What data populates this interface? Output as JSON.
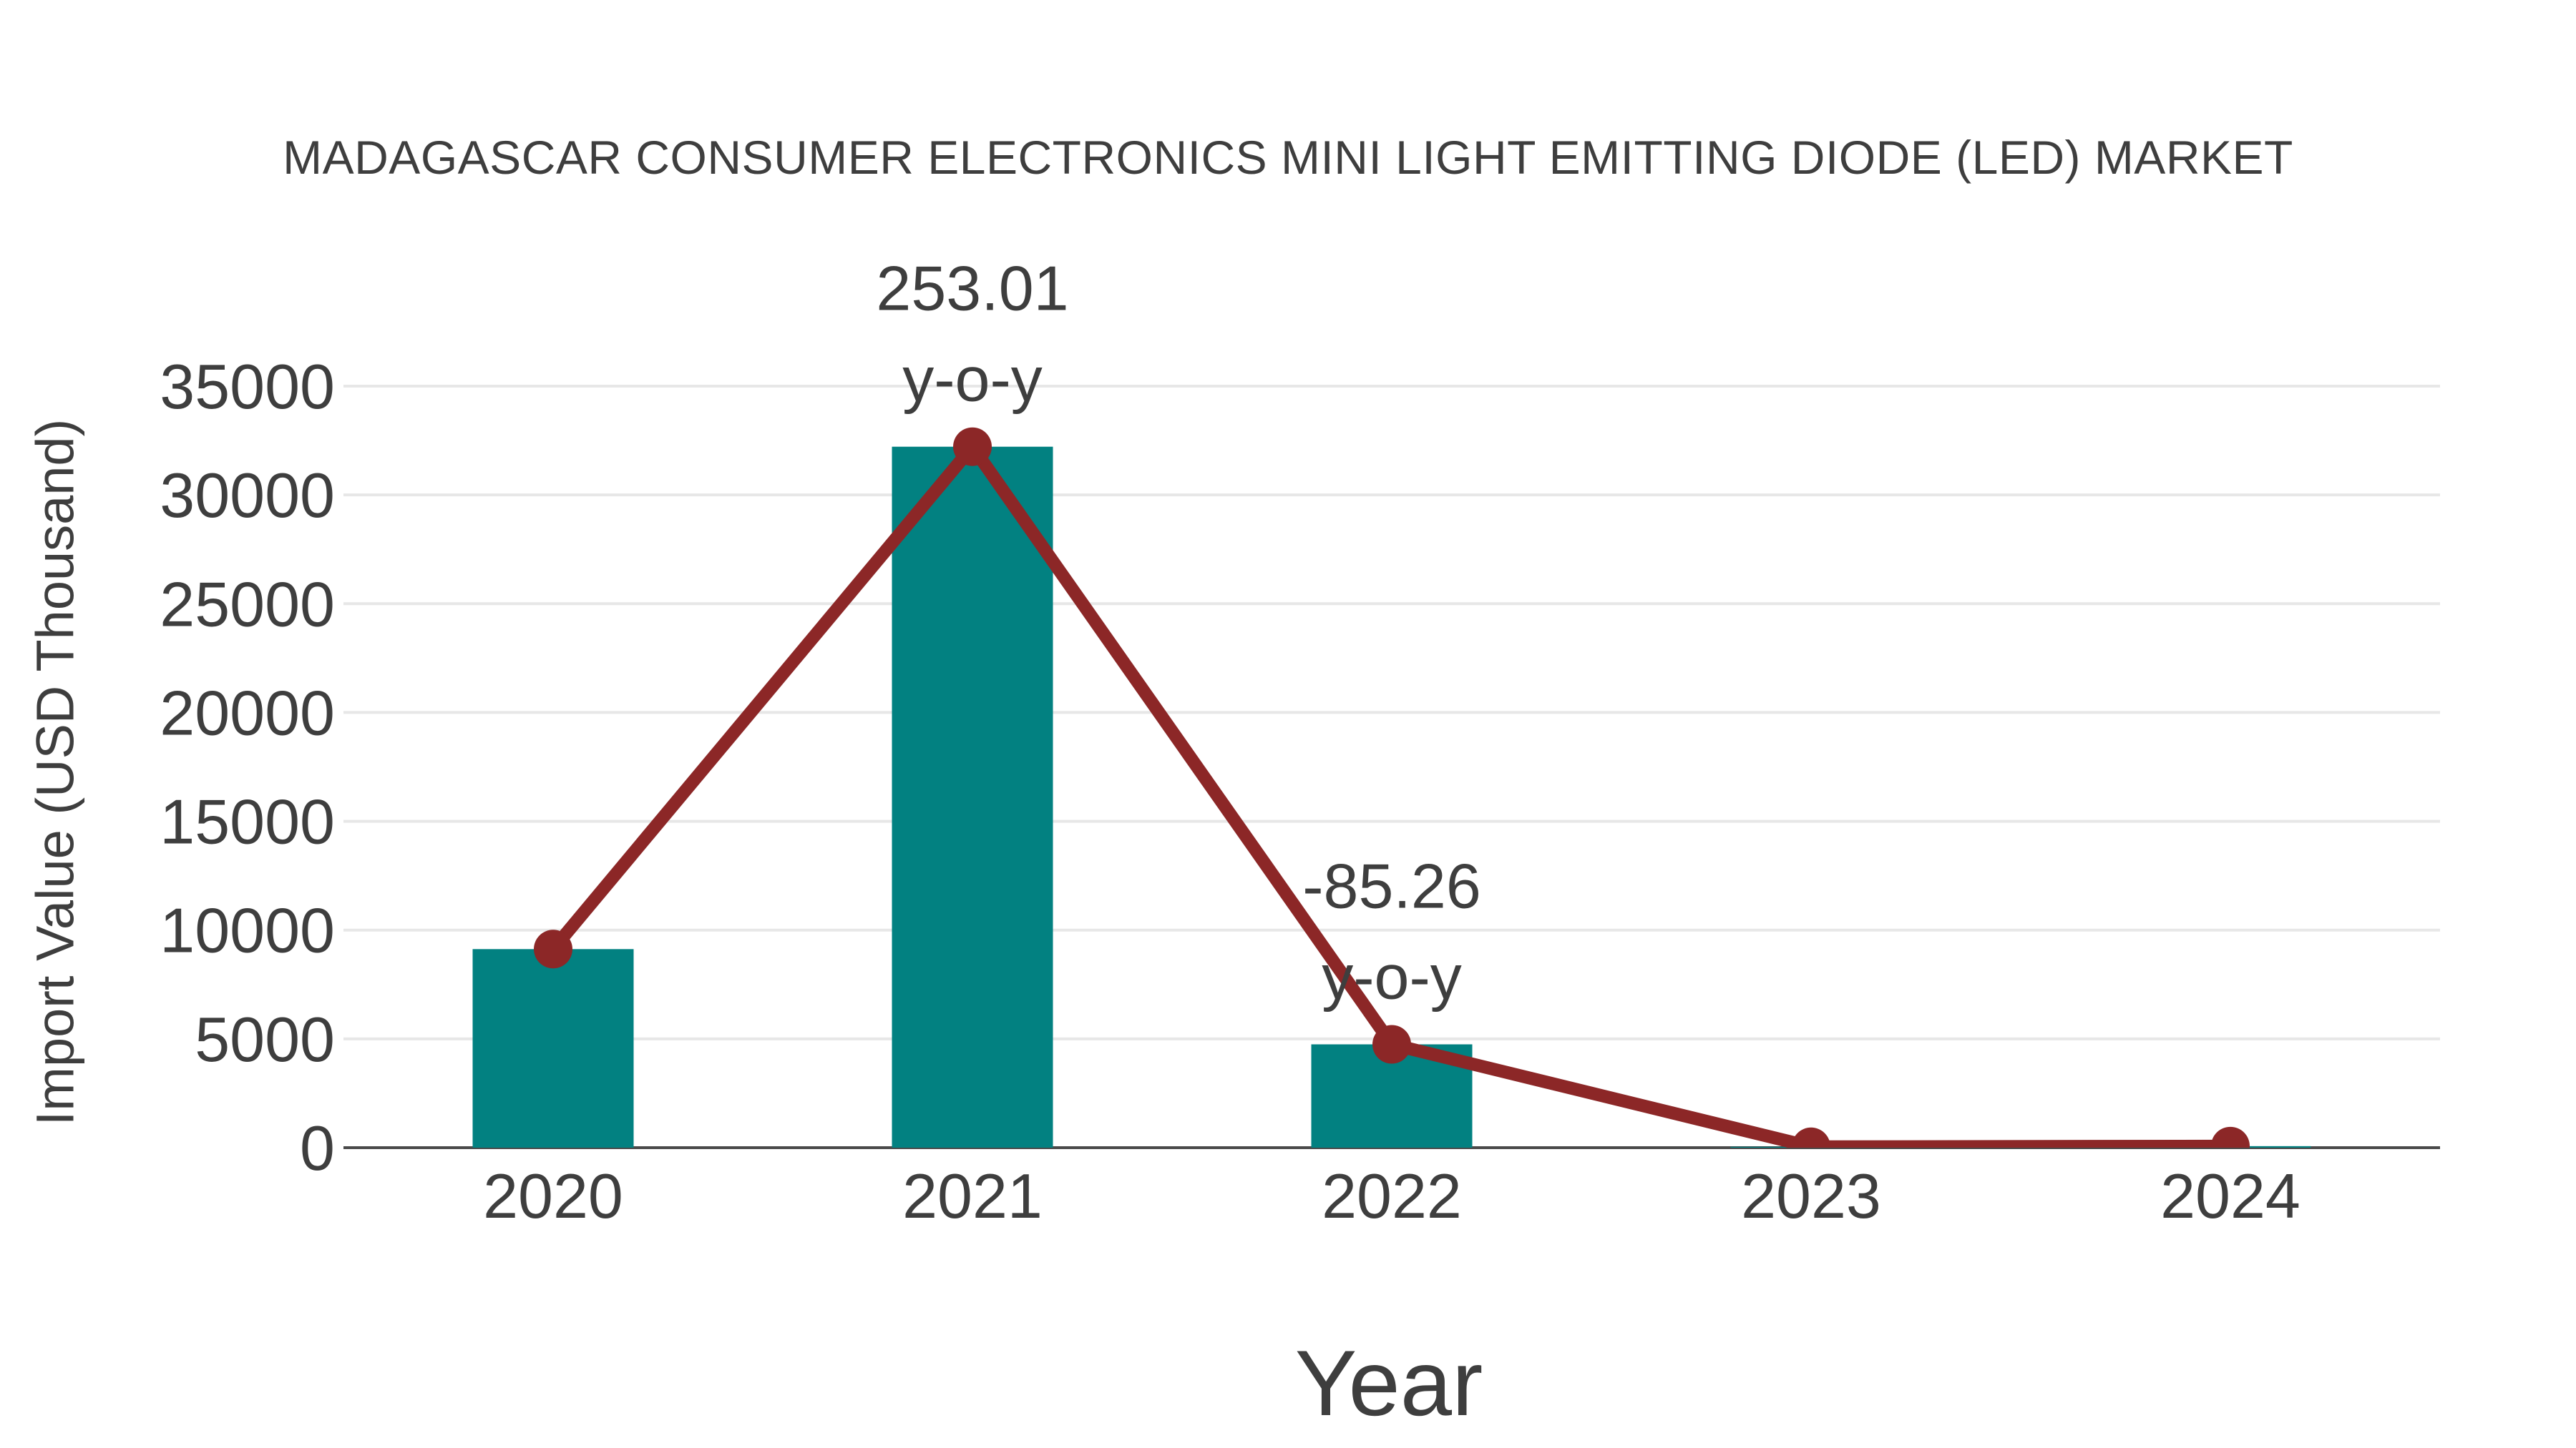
{
  "chart_data": {
    "type": "bar",
    "title": "MADAGASCAR CONSUMER ELECTRONICS MINI LIGHT EMITTING DIODE (LED) MARKET",
    "xlabel": "Year",
    "ylabel": "Import Value (USD Thousand)",
    "categories": [
      "2020",
      "2021",
      "2022",
      "2023",
      "2024"
    ],
    "series": [
      {
        "name": "import-value-bars",
        "type": "bar",
        "values": [
          9126,
          32216,
          4749,
          40,
          70
        ]
      },
      {
        "name": "import-value-trend-line",
        "type": "line",
        "values": [
          9126,
          32216,
          4749,
          40,
          70
        ]
      }
    ],
    "annotations": [
      {
        "category": "2021",
        "value_text": "253.01",
        "suffix_text": "y-o-y"
      },
      {
        "category": "2022",
        "value_text": "-85.26",
        "suffix_text": "y-o-y"
      }
    ],
    "yticks": [
      0,
      5000,
      10000,
      15000,
      20000,
      25000,
      30000,
      35000
    ],
    "ylim": [
      0,
      35000
    ],
    "grid": true,
    "legend": "none",
    "colors": {
      "bar": "#028181",
      "line": "#8c2727",
      "marker": "#8c2727",
      "text": "#3e3e3e",
      "grid": "#e7e7e7",
      "axis_line": "#4a4a4a",
      "background": "#ffffff"
    }
  }
}
